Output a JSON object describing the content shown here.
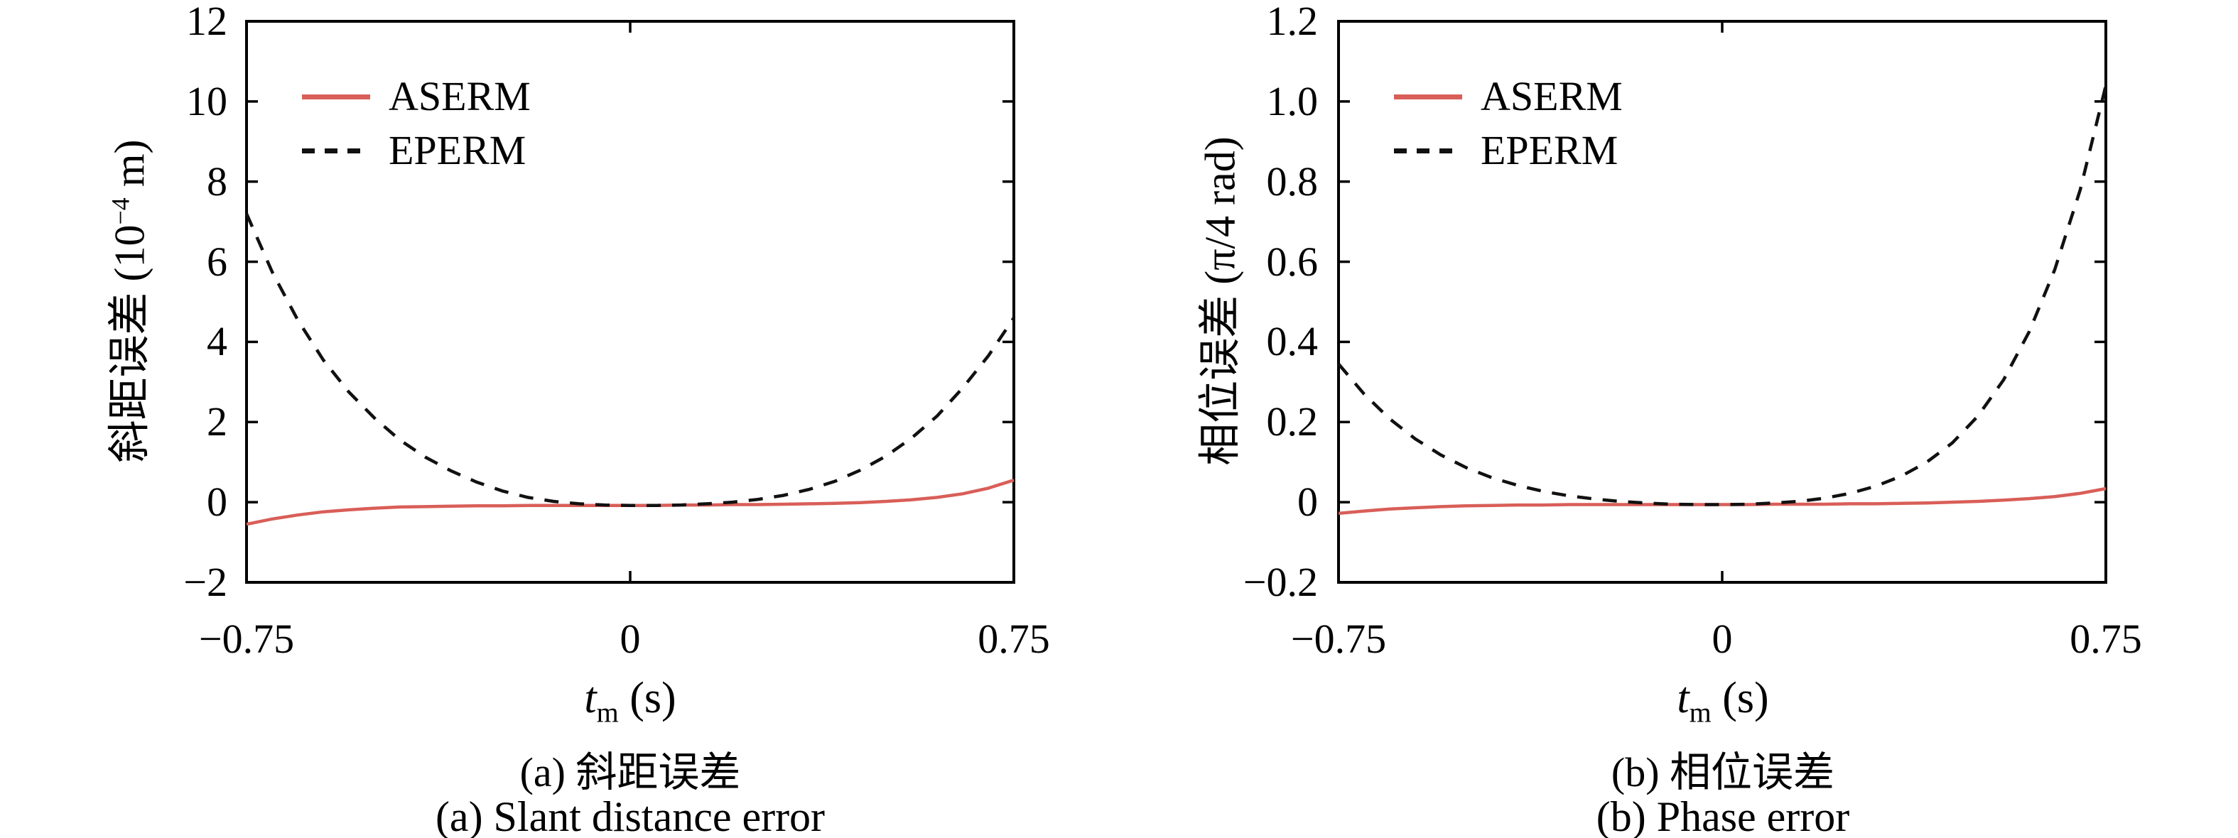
{
  "figure": {
    "background": "#ffffff",
    "axes_color": "#000000"
  },
  "chart_data": [
    {
      "type": "line",
      "panel": "a",
      "xlabel": "t_m (s)",
      "xlabel_parts": {
        "var": "t",
        "sub": "m",
        "unit": " (s)"
      },
      "ylabel": "斜距误差 (10^-4 m)",
      "ylabel_parts": {
        "prefix": "斜距误差 (10",
        "sup": "−4",
        "suffix": " m)"
      },
      "caption_zh": "(a) 斜距误差",
      "caption_en": "(a) Slant distance error",
      "xlim": [
        -0.75,
        0.75
      ],
      "ylim": [
        -2,
        12
      ],
      "xticks": [
        -0.75,
        0,
        0.75
      ],
      "xtick_labels": [
        "−0.75",
        "0",
        "0.75"
      ],
      "yticks": [
        12,
        10,
        8,
        6,
        4,
        2,
        0,
        -2
      ],
      "ytick_labels": [
        "12",
        "10",
        "8",
        "6",
        "4",
        "2",
        "0",
        "−2"
      ],
      "grid": false,
      "legend_position": "inside-top-left",
      "series": [
        {
          "name": "ASERM",
          "color": "#d95e58",
          "style": "solid",
          "x": [
            -0.75,
            -0.7,
            -0.65,
            -0.6,
            -0.55,
            -0.5,
            -0.45,
            -0.4,
            -0.35,
            -0.3,
            -0.25,
            -0.2,
            -0.15,
            -0.1,
            -0.05,
            0,
            0.05,
            0.1,
            0.15,
            0.2,
            0.25,
            0.3,
            0.35,
            0.4,
            0.45,
            0.5,
            0.55,
            0.6,
            0.65,
            0.7,
            0.75
          ],
          "y": [
            -0.55,
            -0.42,
            -0.32,
            -0.24,
            -0.19,
            -0.15,
            -0.12,
            -0.11,
            -0.1,
            -0.09,
            -0.09,
            -0.08,
            -0.08,
            -0.08,
            -0.08,
            -0.08,
            -0.08,
            -0.07,
            -0.07,
            -0.06,
            -0.06,
            -0.05,
            -0.04,
            -0.03,
            -0.01,
            0.02,
            0.06,
            0.12,
            0.21,
            0.35,
            0.55
          ]
        },
        {
          "name": "EPERM",
          "color": "#111111",
          "style": "dashed",
          "x": [
            -0.75,
            -0.7,
            -0.65,
            -0.6,
            -0.55,
            -0.5,
            -0.45,
            -0.4,
            -0.35,
            -0.3,
            -0.25,
            -0.2,
            -0.15,
            -0.1,
            -0.05,
            0,
            0.05,
            0.1,
            0.15,
            0.2,
            0.25,
            0.3,
            0.35,
            0.4,
            0.45,
            0.5,
            0.55,
            0.6,
            0.65,
            0.7,
            0.75
          ],
          "y": [
            7.2,
            5.75,
            4.55,
            3.55,
            2.75,
            2.1,
            1.55,
            1.12,
            0.78,
            0.5,
            0.28,
            0.12,
            0.02,
            -0.04,
            -0.07,
            -0.08,
            -0.08,
            -0.07,
            -0.04,
            0,
            0.07,
            0.17,
            0.32,
            0.52,
            0.8,
            1.15,
            1.6,
            2.15,
            2.85,
            3.65,
            4.6
          ]
        }
      ]
    },
    {
      "type": "line",
      "panel": "b",
      "xlabel": "t_m (s)",
      "xlabel_parts": {
        "var": "t",
        "sub": "m",
        "unit": " (s)"
      },
      "ylabel": "相位误差 (π/4 rad)",
      "ylabel_parts": {
        "prefix": "相位误差 (π/4 rad)",
        "sup": "",
        "suffix": ""
      },
      "caption_zh": "(b) 相位误差",
      "caption_en": "(b) Phase error",
      "xlim": [
        -0.75,
        0.75
      ],
      "ylim": [
        -0.2,
        1.2
      ],
      "xticks": [
        -0.75,
        0,
        0.75
      ],
      "xtick_labels": [
        "−0.75",
        "0",
        "0.75"
      ],
      "yticks": [
        1.2,
        1.0,
        0.8,
        0.6,
        0.4,
        0.2,
        0,
        -0.2
      ],
      "ytick_labels": [
        "1.2",
        "1.0",
        "0.8",
        "0.6",
        "0.4",
        "0.2",
        "0",
        "−0.2"
      ],
      "grid": false,
      "legend_position": "inside-top-left",
      "series": [
        {
          "name": "ASERM",
          "color": "#d95e58",
          "style": "solid",
          "x": [
            -0.75,
            -0.7,
            -0.65,
            -0.6,
            -0.55,
            -0.5,
            -0.45,
            -0.4,
            -0.35,
            -0.3,
            -0.25,
            -0.2,
            -0.15,
            -0.1,
            -0.05,
            0,
            0.05,
            0.1,
            0.15,
            0.2,
            0.25,
            0.3,
            0.35,
            0.4,
            0.45,
            0.5,
            0.55,
            0.6,
            0.65,
            0.7,
            0.75
          ],
          "y": [
            -0.028,
            -0.022,
            -0.017,
            -0.014,
            -0.011,
            -0.009,
            -0.008,
            -0.007,
            -0.007,
            -0.006,
            -0.006,
            -0.006,
            -0.006,
            -0.006,
            -0.006,
            -0.006,
            -0.006,
            -0.005,
            -0.005,
            -0.005,
            -0.004,
            -0.004,
            -0.003,
            -0.002,
            0,
            0.002,
            0.005,
            0.009,
            0.014,
            0.022,
            0.034
          ]
        },
        {
          "name": "EPERM",
          "color": "#111111",
          "style": "dashed",
          "x": [
            -0.75,
            -0.7,
            -0.65,
            -0.6,
            -0.55,
            -0.5,
            -0.45,
            -0.4,
            -0.35,
            -0.3,
            -0.25,
            -0.2,
            -0.15,
            -0.1,
            -0.05,
            0,
            0.05,
            0.1,
            0.15,
            0.2,
            0.25,
            0.3,
            0.35,
            0.4,
            0.45,
            0.5,
            0.55,
            0.6,
            0.65,
            0.7,
            0.75
          ],
          "y": [
            0.345,
            0.27,
            0.208,
            0.158,
            0.118,
            0.086,
            0.061,
            0.042,
            0.027,
            0.016,
            0.008,
            0.002,
            -0.002,
            -0.005,
            -0.006,
            -0.006,
            -0.005,
            -0.002,
            0.002,
            0.01,
            0.022,
            0.04,
            0.065,
            0.1,
            0.148,
            0.215,
            0.305,
            0.425,
            0.58,
            0.78,
            1.04
          ]
        }
      ]
    }
  ]
}
